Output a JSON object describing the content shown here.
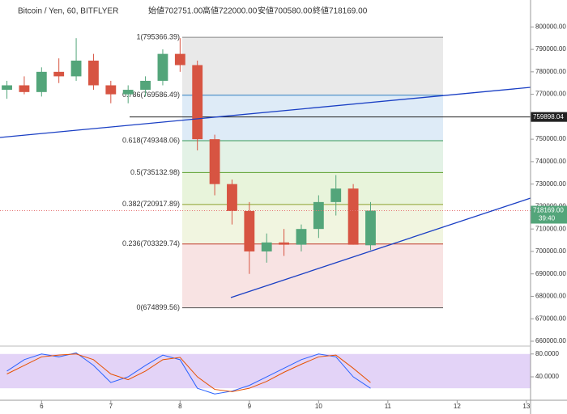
{
  "chart_data": {
    "type": "candlestick",
    "title": "Bitcoin / Yen, 60, BITFLYER",
    "ohlc_labels": [
      "始値702751.00",
      "高値722000.00",
      "安値700580.00",
      "終値718169.00"
    ],
    "x": [
      5.5,
      5.75,
      6.0,
      6.25,
      6.5,
      6.75,
      7.0,
      7.25,
      7.5,
      7.75,
      8.0,
      8.25,
      8.5,
      8.75,
      9.0,
      9.25,
      9.5,
      9.75,
      10.0,
      10.25,
      10.5,
      10.75
    ],
    "open": [
      772000,
      774000,
      771000,
      780000,
      778000,
      785000,
      774000,
      770000,
      772000,
      776000,
      788000,
      783000,
      750000,
      730000,
      718000,
      700000,
      704000,
      703000,
      710000,
      722000,
      728000,
      702751
    ],
    "high": [
      776000,
      778000,
      782000,
      786000,
      795000,
      788000,
      776000,
      774000,
      778000,
      790000,
      795000,
      785000,
      752000,
      732000,
      722000,
      708000,
      710000,
      712000,
      725000,
      734000,
      730000,
      722000
    ],
    "low": [
      768000,
      770000,
      769000,
      775000,
      776000,
      772000,
      766000,
      766000,
      769000,
      774000,
      780000,
      745000,
      725000,
      712000,
      690000,
      695000,
      698000,
      700000,
      706000,
      716000,
      703000,
      700580
    ],
    "close": [
      774000,
      771000,
      780000,
      778000,
      785000,
      774000,
      770000,
      772000,
      776000,
      788000,
      783000,
      750000,
      730000,
      718000,
      700000,
      704000,
      703000,
      710000,
      722000,
      728000,
      703000,
      718169
    ],
    "up_color": "#53a57a",
    "down_color": "#d75442",
    "xlim": [
      5.4,
      13.06
    ],
    "xticks": [
      6,
      7,
      8,
      9,
      10,
      11,
      12,
      13
    ],
    "ylim": [
      660000,
      812000
    ],
    "yticks": [
      {
        "value": 660000,
        "label": "660000.00"
      },
      {
        "value": 670000,
        "label": "670000.00"
      },
      {
        "value": 680000,
        "label": "680000.00"
      },
      {
        "value": 690000,
        "label": "690000.00"
      },
      {
        "value": 700000,
        "label": "700000.00"
      },
      {
        "value": 710000,
        "label": "710000.00"
      },
      {
        "value": 720000,
        "label": "720000.00"
      },
      {
        "value": 730000,
        "label": "730000.00"
      },
      {
        "value": 740000,
        "label": "740000.00"
      },
      {
        "value": 750000,
        "label": "750000.00"
      },
      {
        "value": 760000,
        "label": "760000.00"
      },
      {
        "value": 770000,
        "label": "770000.00"
      },
      {
        "value": 780000,
        "label": "780000.00"
      },
      {
        "value": 790000,
        "label": "790000.00"
      },
      {
        "value": 800000,
        "label": "800000.00"
      }
    ],
    "fib_levels": [
      {
        "label": "1(795366.39)",
        "value": 795366.39,
        "color": "#888888",
        "fill": "#e3e3e3"
      },
      {
        "label": "0.786(769586.49)",
        "value": 769586.49,
        "color": "#2f7fc1",
        "fill": "#d6e6f5"
      },
      {
        "label": "0.618(749348.06)",
        "value": 749348.06,
        "color": "#3a9a5a",
        "fill": "#dcefe0"
      },
      {
        "label": "0.5(735132.98)",
        "value": 735132.98,
        "color": "#5aa02c",
        "fill": "#e2f1d2"
      },
      {
        "label": "0.382(720917.89)",
        "value": 720917.89,
        "color": "#8aa02c",
        "fill": "#eef3d8"
      },
      {
        "label": "0.236(703329.74)",
        "value": 703329.74,
        "color": "#c0392b",
        "fill": "#f6dcdc"
      },
      {
        "label": "0(674899.56)",
        "value": 674899.56,
        "color": "#555555",
        "fill": "#f6dcdc"
      }
    ],
    "horizontal_line": {
      "value": 759898.04,
      "label": "759898.04"
    },
    "last_price": {
      "value": 718169,
      "label": "718169.00"
    },
    "countdown": "39:40",
    "oscillator": {
      "ylim": [
        -1,
        91
      ],
      "band": [
        20,
        80
      ],
      "yticks": [
        {
          "value": 80,
          "label": "80.0000"
        },
        {
          "value": 40,
          "label": "40.0000"
        }
      ],
      "series": [
        {
          "color": "#2962ff",
          "values": [
            50,
            70,
            80,
            75,
            82,
            60,
            30,
            40,
            60,
            78,
            70,
            20,
            10,
            15,
            25,
            40,
            55,
            70,
            80,
            75,
            40,
            20
          ]
        },
        {
          "color": "#e65100",
          "values": [
            45,
            60,
            75,
            78,
            80,
            70,
            45,
            35,
            50,
            70,
            74,
            40,
            18,
            14,
            20,
            32,
            48,
            62,
            75,
            78,
            55,
            30
          ]
        }
      ]
    }
  }
}
